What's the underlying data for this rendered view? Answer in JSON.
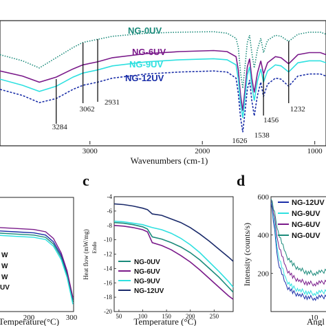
{
  "chart_data": [
    {
      "type": "line",
      "panel": "ftir",
      "xlabel": "Wavenumbers (cm-1)",
      "x_tick_labels": [
        "3000",
        "2000",
        "1000"
      ],
      "xlim": [
        3800,
        900
      ],
      "series": [
        {
          "name": "NG-0UV",
          "color": "#1a8a7a",
          "style": "dotted",
          "x": [
            3800,
            3600,
            3450,
            3300,
            3150,
            3062,
            2931,
            2800,
            2500,
            2200,
            1900,
            1780,
            1700,
            1680,
            1660,
            1640,
            1626,
            1600,
            1580,
            1560,
            1538,
            1510,
            1480,
            1456,
            1420,
            1350,
            1300,
            1232,
            1150,
            1050,
            950,
            900
          ],
          "y": [
            1.8,
            1.2,
            0.5,
            1.5,
            2.5,
            3.0,
            3.3,
            3.6,
            3.9,
            4.0,
            4.05,
            3.9,
            3.4,
            2.5,
            0.0,
            -1.5,
            0.0,
            3.0,
            3.7,
            2.0,
            0.5,
            2.3,
            3.4,
            2.0,
            3.2,
            3.7,
            3.6,
            3.1,
            3.8,
            4.0,
            4.0,
            3.8
          ]
        },
        {
          "name": "NG-6UV",
          "color": "#7a1a8a",
          "style": "solid",
          "x": [
            3800,
            3600,
            3450,
            3300,
            3150,
            3062,
            2931,
            2800,
            2500,
            2200,
            1900,
            1780,
            1700,
            1680,
            1660,
            1640,
            1626,
            1600,
            1580,
            1560,
            1538,
            1510,
            1480,
            1456,
            1420,
            1350,
            1300,
            1232,
            1150,
            1050,
            950,
            900
          ],
          "y": [
            0.2,
            -0.3,
            -0.9,
            -0.4,
            0.4,
            0.8,
            1.1,
            1.5,
            1.9,
            2.1,
            2.2,
            2.1,
            1.6,
            0.3,
            -2.2,
            -3.7,
            -2.2,
            0.6,
            1.4,
            -0.5,
            -1.9,
            0.0,
            1.2,
            -0.1,
            1.0,
            1.6,
            1.5,
            0.9,
            1.8,
            2.0,
            2.0,
            1.8
          ]
        },
        {
          "name": "NG-9UV",
          "color": "#2ee0e0",
          "style": "solid",
          "x": [
            3800,
            3600,
            3450,
            3300,
            3150,
            3062,
            2931,
            2800,
            2500,
            2200,
            1900,
            1780,
            1700,
            1680,
            1660,
            1640,
            1626,
            1600,
            1580,
            1560,
            1538,
            1510,
            1480,
            1456,
            1420,
            1350,
            1300,
            1232,
            1150,
            1050,
            950,
            900
          ],
          "y": [
            -0.6,
            -1.2,
            -1.8,
            -1.3,
            -0.4,
            0.0,
            0.3,
            0.7,
            1.1,
            1.3,
            1.4,
            1.3,
            0.8,
            -0.6,
            -3.0,
            -4.4,
            -3.0,
            -0.2,
            0.6,
            -1.3,
            -2.7,
            -0.8,
            0.4,
            -0.9,
            0.2,
            0.8,
            0.7,
            0.1,
            1.0,
            1.2,
            1.2,
            1.0
          ]
        },
        {
          "name": "NG-12UV",
          "color": "#1a2ea8",
          "style": "dashed",
          "x": [
            3800,
            3600,
            3450,
            3300,
            3150,
            3062,
            2931,
            2800,
            2500,
            2200,
            1900,
            1780,
            1700,
            1680,
            1660,
            1640,
            1626,
            1600,
            1580,
            1560,
            1538,
            1510,
            1480,
            1456,
            1420,
            1350,
            1300,
            1232,
            1150,
            1050,
            950,
            900
          ],
          "y": [
            -1.6,
            -2.2,
            -2.9,
            -2.5,
            -1.6,
            -1.2,
            -0.9,
            -0.5,
            -0.1,
            0.1,
            0.2,
            0.1,
            -0.5,
            -2.0,
            -4.4,
            -5.8,
            -4.4,
            -1.6,
            -0.7,
            -2.7,
            -4.2,
            -2.2,
            -0.9,
            -2.3,
            -1.1,
            -0.5,
            -0.6,
            -1.3,
            -0.3,
            -0.1,
            -0.1,
            -0.3
          ]
        }
      ],
      "peak_labels": [
        "3284",
        "3062",
        "2931",
        "1626",
        "1538",
        "1456",
        "1232"
      ]
    },
    {
      "type": "line",
      "panel": "tga",
      "xlabel": "Temperature(°C)",
      "x_tick_labels": [
        "200",
        "300"
      ],
      "xlim": [
        60,
        300
      ],
      "series": [
        {
          "name": "",
          "color": "#1a2ea8",
          "x": [
            60,
            100,
            150,
            200,
            230,
            250,
            270,
            285,
            300
          ],
          "y": [
            -2.6,
            -2.8,
            -2.9,
            -3.0,
            -3.2,
            -3.8,
            -5.0,
            -6.6,
            -9.0
          ]
        },
        {
          "name": "",
          "color": "#1a8a7a",
          "x": [
            60,
            100,
            150,
            200,
            230,
            250,
            270,
            285,
            300
          ],
          "y": [
            -2.8,
            -3.0,
            -3.1,
            -3.2,
            -3.4,
            -4.0,
            -5.2,
            -6.8,
            -9.2
          ]
        },
        {
          "name": "",
          "color": "#7a1a8a",
          "x": [
            60,
            100,
            150,
            200,
            230,
            250,
            270,
            285,
            300
          ],
          "y": [
            -2.3,
            -2.5,
            -2.6,
            -2.7,
            -2.9,
            -3.5,
            -4.8,
            -6.4,
            -8.8
          ]
        },
        {
          "name": "",
          "color": "#2ee0e0",
          "x": [
            60,
            100,
            150,
            200,
            230,
            250,
            270,
            285,
            300
          ],
          "y": [
            -3.0,
            -3.2,
            -3.3,
            -3.4,
            -3.6,
            -4.2,
            -5.4,
            -7.0,
            -9.4
          ]
        }
      ],
      "legend_fragments": [
        "W",
        "W",
        "W",
        "UV"
      ]
    },
    {
      "type": "line",
      "panel": "c",
      "panel_letter": "c",
      "xlabel": "Temperature (°C)",
      "ylabel": "Heat flow (mW/mg)",
      "y_annotation": "Endo",
      "xlim": [
        40,
        290
      ],
      "ylim": [
        -20,
        -4
      ],
      "x_ticks": [
        50,
        100,
        150,
        200,
        250
      ],
      "y_ticks": [
        -20,
        -18,
        -16,
        -14,
        -12,
        -10,
        -8,
        -6,
        -4
      ],
      "series": [
        {
          "name": "NG-0UV",
          "color": "#1a8a7a",
          "x": [
            40,
            60,
            80,
            100,
            110,
            120,
            140,
            160,
            180,
            200,
            220,
            240,
            260,
            280,
            290
          ],
          "y": [
            -7.6,
            -7.7,
            -7.9,
            -8.2,
            -8.5,
            -9.6,
            -9.9,
            -10.4,
            -11.0,
            -11.8,
            -12.8,
            -14.0,
            -15.2,
            -16.6,
            -17.3
          ]
        },
        {
          "name": "NG-6UV",
          "color": "#7a1a8a",
          "x": [
            40,
            60,
            80,
            100,
            110,
            120,
            140,
            160,
            180,
            200,
            220,
            240,
            260,
            280,
            290
          ],
          "y": [
            -8.0,
            -8.1,
            -8.3,
            -8.6,
            -8.9,
            -10.4,
            -10.8,
            -11.4,
            -12.2,
            -13.1,
            -14.2,
            -15.4,
            -16.6,
            -17.8,
            -18.3
          ]
        },
        {
          "name": "NG-9UV",
          "color": "#2ee0e0",
          "x": [
            40,
            60,
            80,
            100,
            110,
            120,
            140,
            160,
            180,
            200,
            220,
            240,
            260,
            280,
            290
          ],
          "y": [
            -7.4,
            -7.5,
            -7.7,
            -7.9,
            -8.1,
            -8.3,
            -8.6,
            -9.1,
            -9.8,
            -10.7,
            -11.8,
            -13.1,
            -14.4,
            -15.8,
            -16.6
          ]
        },
        {
          "name": "NG-12UV",
          "color": "#1a2a6a",
          "x": [
            40,
            60,
            80,
            100,
            110,
            120,
            140,
            160,
            180,
            200,
            220,
            240,
            260,
            280,
            290
          ],
          "y": [
            -5.0,
            -5.1,
            -5.3,
            -5.6,
            -5.8,
            -6.4,
            -6.6,
            -7.1,
            -7.6,
            -8.3,
            -9.2,
            -10.2,
            -11.3,
            -12.4,
            -13.0
          ]
        }
      ]
    },
    {
      "type": "line",
      "panel": "d",
      "panel_letter": "d",
      "ylabel": "Intensity (counts/s)",
      "xlabel": "Angl",
      "xlim": [
        4,
        16
      ],
      "ylim": [
        0,
        600
      ],
      "y_ticks": [
        200,
        400,
        600
      ],
      "x_ticks": [
        10
      ],
      "series": [
        {
          "name": "NG-12UV",
          "color": "#1a2ea8",
          "x": [
            4,
            5,
            6,
            7,
            8,
            9,
            10,
            11,
            12,
            13,
            14,
            15,
            16
          ],
          "y": [
            580,
            260,
            140,
            100,
            85,
            75,
            70,
            75,
            85,
            105,
            140,
            190,
            260
          ]
        },
        {
          "name": "NG-9UV",
          "color": "#2ee0e0",
          "x": [
            4,
            5,
            6,
            7,
            8,
            9,
            10,
            11,
            12,
            13,
            14,
            15,
            16
          ],
          "y": [
            600,
            300,
            170,
            125,
            110,
            100,
            95,
            100,
            115,
            140,
            180,
            240,
            320
          ]
        },
        {
          "name": "NG-6UV",
          "color": "#7a1a8a",
          "x": [
            4,
            5,
            6,
            7,
            8,
            9,
            10,
            11,
            12,
            13,
            14,
            15,
            16
          ],
          "y": [
            600,
            360,
            230,
            180,
            160,
            150,
            145,
            150,
            165,
            195,
            240,
            300,
            380
          ]
        },
        {
          "name": "NG-0UV",
          "color": "#1a8a7a",
          "x": [
            4,
            5,
            6,
            7,
            8,
            9,
            10,
            11,
            12,
            13,
            14,
            15,
            16
          ],
          "y": [
            600,
            420,
            300,
            245,
            220,
            205,
            200,
            205,
            225,
            260,
            310,
            380,
            460
          ]
        }
      ]
    }
  ]
}
